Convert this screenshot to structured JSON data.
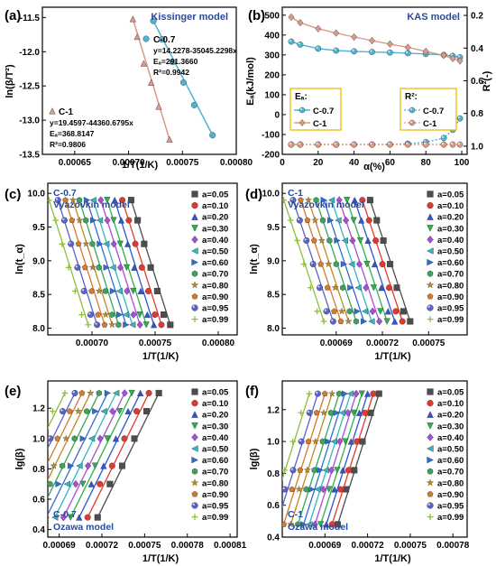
{
  "figure": {
    "colors": {
      "c07": "#4fb3d1",
      "c1": "#d99a86",
      "model_title": "#2a4aa0",
      "frame": "#000000",
      "box": "#e9c11a",
      "series": [
        "#4d4d4d",
        "#e03a2f",
        "#2f55d4",
        "#2bb24c",
        "#a64fd9",
        "#33b7c2",
        "#2a6fd6",
        "#3aa55f",
        "#c08a20",
        "#d67b2a",
        "#5a63c9",
        "#8fbf3a"
      ]
    },
    "series_labels": [
      "a=0.05",
      "a=0.10",
      "a=0.20",
      "a=0.30",
      "a=0.40",
      "a=0.50",
      "a=0.60",
      "a=0.70",
      "a=0.80",
      "a=0.90",
      "a=0.95",
      "a=0.99"
    ],
    "series_markers": [
      "square",
      "circle",
      "triangle-up",
      "triangle-down",
      "diamond",
      "triangle-left",
      "triangle-right",
      "hexagon",
      "star",
      "pentagon",
      "sphere",
      "plus"
    ]
  },
  "chart_data": [
    {
      "panel": "(a)",
      "type": "scatter",
      "title": "Kissinger model",
      "xlabel": "1/T(1/K)",
      "ylabel": "ln(β/T²)",
      "xlim": [
        0.00062,
        0.0008
      ],
      "ylim": [
        -13.5,
        -11.35
      ],
      "xticks": [
        "0.00065",
        "0.00070",
        "0.00075",
        "0.00080"
      ],
      "yticks": [
        "-13.5",
        "-13.0",
        "-12.5",
        "-12.0",
        "-11.5"
      ],
      "series": [
        {
          "name": "C-0.7",
          "x": [
            0.000723,
            0.000731,
            0.000741,
            0.000751,
            0.000761,
            0.000778
          ],
          "y": [
            -11.55,
            -11.82,
            -12.15,
            -12.45,
            -12.78,
            -13.22
          ],
          "annotations": [
            "C-0.7",
            "y=14.2278-35045.2298x",
            "Eₐ=291.3660",
            "R²=0.9942"
          ]
        },
        {
          "name": "C-1",
          "x": [
            0.000704,
            0.000708,
            0.000714,
            0.000721,
            0.000728,
            0.000738
          ],
          "y": [
            -11.52,
            -11.78,
            -12.17,
            -12.45,
            -12.8,
            -13.28
          ],
          "annotations": [
            "C-1",
            "y=19.4597-44360.6795x",
            "Eₐ=368.8147",
            "R²=0.9806"
          ]
        }
      ]
    },
    {
      "panel": "(b)",
      "type": "line",
      "title": "KAS model",
      "xlabel": "α(%)",
      "ylabel": "Eₐ(kJ/mol)",
      "y2label": "R²(-)",
      "xlim": [
        0,
        103
      ],
      "ylim": [
        -200,
        540
      ],
      "y2lim": [
        1.05,
        0.15
      ],
      "xticks": [
        "0",
        "20",
        "40",
        "60",
        "80",
        "100"
      ],
      "yticks": [
        "-200",
        "-100",
        "0",
        "100",
        "200",
        "300",
        "400",
        "500"
      ],
      "y2ticks": [
        "0.2",
        "0.4",
        "0.6",
        "0.8",
        "1.0"
      ],
      "x": [
        5,
        10,
        20,
        30,
        40,
        50,
        60,
        70,
        80,
        90,
        95,
        99
      ],
      "legend_ea_title": "Eₐ:",
      "legend_r2_title": "R²:",
      "series": [
        {
          "name": "C-0.7",
          "axis": "left",
          "values": [
            367,
            352,
            332,
            322,
            318,
            315,
            312,
            309,
            305,
            300,
            295,
            288
          ]
        },
        {
          "name": "C-1",
          "axis": "left",
          "values": [
            490,
            462,
            432,
            410,
            390,
            372,
            355,
            338,
            318,
            298,
            282,
            270
          ]
        },
        {
          "name": "C-0.7",
          "axis": "right",
          "values": [
            0.99,
            0.99,
            0.99,
            0.99,
            0.99,
            0.99,
            0.99,
            0.985,
            0.975,
            0.95,
            0.9,
            0.83
          ]
        },
        {
          "name": "C-1",
          "axis": "right",
          "values": [
            0.99,
            0.99,
            0.99,
            0.99,
            0.99,
            0.99,
            0.99,
            0.99,
            0.99,
            0.99,
            0.99,
            0.99
          ]
        }
      ]
    },
    {
      "panel": "(c)",
      "type": "scatter",
      "sample": "C-0.7",
      "title": "Vyazovkin model",
      "xlabel": "1/T(1/K)",
      "ylabel": "ln(t_α)",
      "xlim": [
        0.000665,
        0.000815
      ],
      "ylim": [
        7.9,
        10.15
      ],
      "xticks": [
        "0.00070",
        "0.00075",
        "0.00080"
      ],
      "yticks": [
        "8.0",
        "8.5",
        "9.0",
        "9.5",
        "10.0"
      ],
      "y": [
        8.05,
        8.2,
        8.55,
        8.9,
        9.25,
        9.6,
        9.9
      ],
      "series_x_start": [
        0.000762,
        0.000755,
        0.000749,
        0.000743,
        0.000738,
        0.000732,
        0.000727,
        0.000721,
        0.000716,
        0.00071,
        0.000704,
        0.000697
      ],
      "series_x_shift": 3.1e-05
    },
    {
      "panel": "(d)",
      "type": "scatter",
      "sample": "C-1",
      "title": "Vyazovkin model",
      "xlabel": "1/T(1/K)",
      "ylabel": "ln(t_α)",
      "xlim": [
        0.000655,
        0.000775
      ],
      "ylim": [
        7.9,
        10.15
      ],
      "xticks": [
        "0.00069",
        "0.00072",
        "0.00075"
      ],
      "yticks": [
        "8.0",
        "8.5",
        "9.0",
        "9.5",
        "10.0"
      ],
      "y": [
        8.1,
        8.25,
        8.6,
        8.95,
        9.3,
        9.6,
        9.9
      ],
      "series_x_start": [
        0.000738,
        0.000733,
        0.000728,
        0.000723,
        0.000718,
        0.000713,
        0.000708,
        0.000703,
        0.000698,
        0.000693,
        0.000688,
        0.000682
      ],
      "series_x_shift": 2.6e-05
    },
    {
      "panel": "(e)",
      "type": "scatter",
      "sample": "C-0.7",
      "title": "Ozawa model",
      "xlabel": "1/T(1/K)",
      "ylabel": "lg(β)",
      "xlim": [
        0.000682,
        0.000815
      ],
      "ylim": [
        0.35,
        1.38
      ],
      "xticks": [
        "0.00069",
        "0.00072",
        "0.00075",
        "0.00078",
        "0.00081"
      ],
      "yticks": [
        "0.4",
        "0.6",
        "0.8",
        "1.0",
        "1.2"
      ],
      "y": [
        1.3,
        1.18,
        1.0,
        0.82,
        0.7,
        0.48
      ],
      "series_x_start": [
        0.00076,
        0.000753,
        0.000747,
        0.000741,
        0.000736,
        0.00073,
        0.000724,
        0.000718,
        0.000712,
        0.000706,
        0.000701,
        0.000694
      ],
      "series_x_shift": 4.3e-05
    },
    {
      "panel": "(f)",
      "type": "scatter",
      "sample": "C-1",
      "title": "Ozawa model",
      "xlabel": "1/T(1/K)",
      "ylabel": "lg(β)",
      "xlim": [
        0.00066,
        0.00079
      ],
      "ylim": [
        0.4,
        1.38
      ],
      "xticks": [
        "0.00069",
        "0.00072",
        "0.00075",
        "0.00078"
      ],
      "yticks": [
        "0.4",
        "0.6",
        "0.8",
        "1.0",
        "1.2"
      ],
      "y": [
        1.3,
        1.18,
        1.0,
        0.82,
        0.7,
        0.48
      ],
      "series_x_start": [
        0.000728,
        0.000724,
        0.00072,
        0.000716,
        0.000712,
        0.000708,
        0.000704,
        0.0007,
        0.000695,
        0.00069,
        0.000685,
        0.000679
      ],
      "series_x_shift": 2.9e-05
    }
  ]
}
